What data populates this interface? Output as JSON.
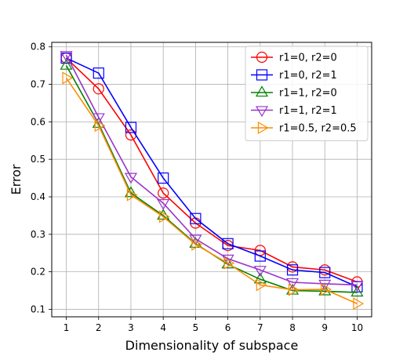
{
  "chart_data": {
    "type": "line",
    "title": "",
    "xlabel": "Dimensionality of subspace",
    "ylabel": "Error",
    "x": [
      1,
      2,
      3,
      4,
      5,
      6,
      7,
      8,
      9,
      10
    ],
    "xlim": [
      0.55,
      10.45
    ],
    "ylim": [
      0.08,
      0.812
    ],
    "xticks": [
      "1",
      "2",
      "3",
      "4",
      "5",
      "6",
      "7",
      "8",
      "9",
      "10"
    ],
    "yticks": [
      "0.1",
      "0.2",
      "0.3",
      "0.4",
      "0.5",
      "0.6",
      "0.7",
      "0.8"
    ],
    "grid": true,
    "legend_position": "top-right",
    "series": [
      {
        "name": "r1=0, r2=0",
        "color": "#ff0000",
        "marker": "circle",
        "values": [
          0.77,
          0.688,
          0.565,
          0.41,
          0.33,
          0.27,
          0.257,
          0.213,
          0.205,
          0.173
        ]
      },
      {
        "name": "r1=0, r2=1",
        "color": "#0000ff",
        "marker": "square",
        "values": [
          0.77,
          0.73,
          0.585,
          0.45,
          0.342,
          0.275,
          0.242,
          0.205,
          0.198,
          0.16
        ]
      },
      {
        "name": "r1=1, r2=0",
        "color": "#008000",
        "marker": "triangle-up",
        "values": [
          0.75,
          0.595,
          0.41,
          0.35,
          0.275,
          0.22,
          0.18,
          0.15,
          0.148,
          0.145
        ]
      },
      {
        "name": "r1=1, r2=1",
        "color": "#9933cc",
        "marker": "triangle-down",
        "values": [
          0.778,
          0.612,
          0.453,
          0.383,
          0.288,
          0.235,
          0.205,
          0.172,
          0.168,
          0.165
        ]
      },
      {
        "name": "r1=0.5, r2=0.5",
        "color": "#ff8c00",
        "marker": "triangle-right",
        "values": [
          0.717,
          0.59,
          0.405,
          0.347,
          0.273,
          0.223,
          0.165,
          0.152,
          0.153,
          0.115
        ]
      }
    ]
  }
}
